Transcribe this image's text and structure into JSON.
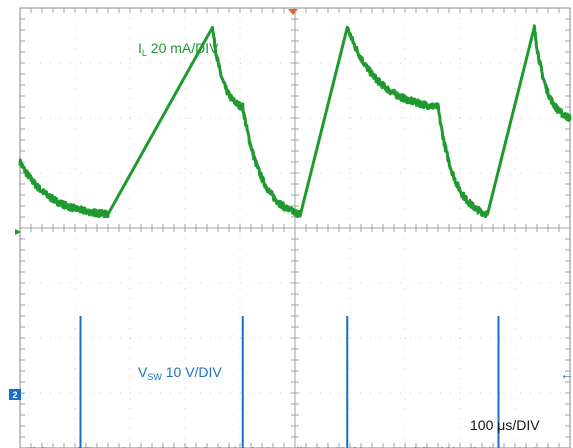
{
  "chart_data": {
    "type": "line",
    "grid": true,
    "grid_divisions": {
      "x": 10,
      "y": 8
    },
    "timebase": "100 μs/DIV",
    "x_range_us": [
      0,
      1000
    ],
    "series": [
      {
        "name": "IL",
        "label_main": "I",
        "label_sub": "L",
        "label_rest": " 20 mA/DIV",
        "color": "#1f9a2f",
        "units": "divisions",
        "x_us": [
          0,
          160,
          350,
          405,
          510,
          595,
          760,
          850,
          935,
          1000
        ],
        "y_div": [
          1.2,
          0.25,
          3.65,
          2.2,
          0.25,
          3.65,
          2.2,
          0.25,
          3.65,
          2.0
        ]
      },
      {
        "name": "VSW",
        "label_main": "V",
        "label_sub": "SW",
        "label_rest": " 10 V/DIV",
        "color": "#1a6fc4",
        "units": "divisions",
        "baseline_div": -4.05,
        "spike_times_us": [
          110,
          405,
          595,
          870
        ],
        "spike_peak_div": -1.6
      }
    ],
    "markers": {
      "trigger_color": "#e8672a",
      "ch1_ground_color": "#1a9a3a",
      "ch2_marker_label": "2",
      "ch2_marker_color": "#1a6fc4",
      "ch2_offscreen_arrow": "←"
    },
    "colors": {
      "grid_dots": "#c8c8c8",
      "axis_ticks": "#a0a0a0",
      "border": "#888888",
      "overlay_trace": "#6b2fb0"
    }
  }
}
